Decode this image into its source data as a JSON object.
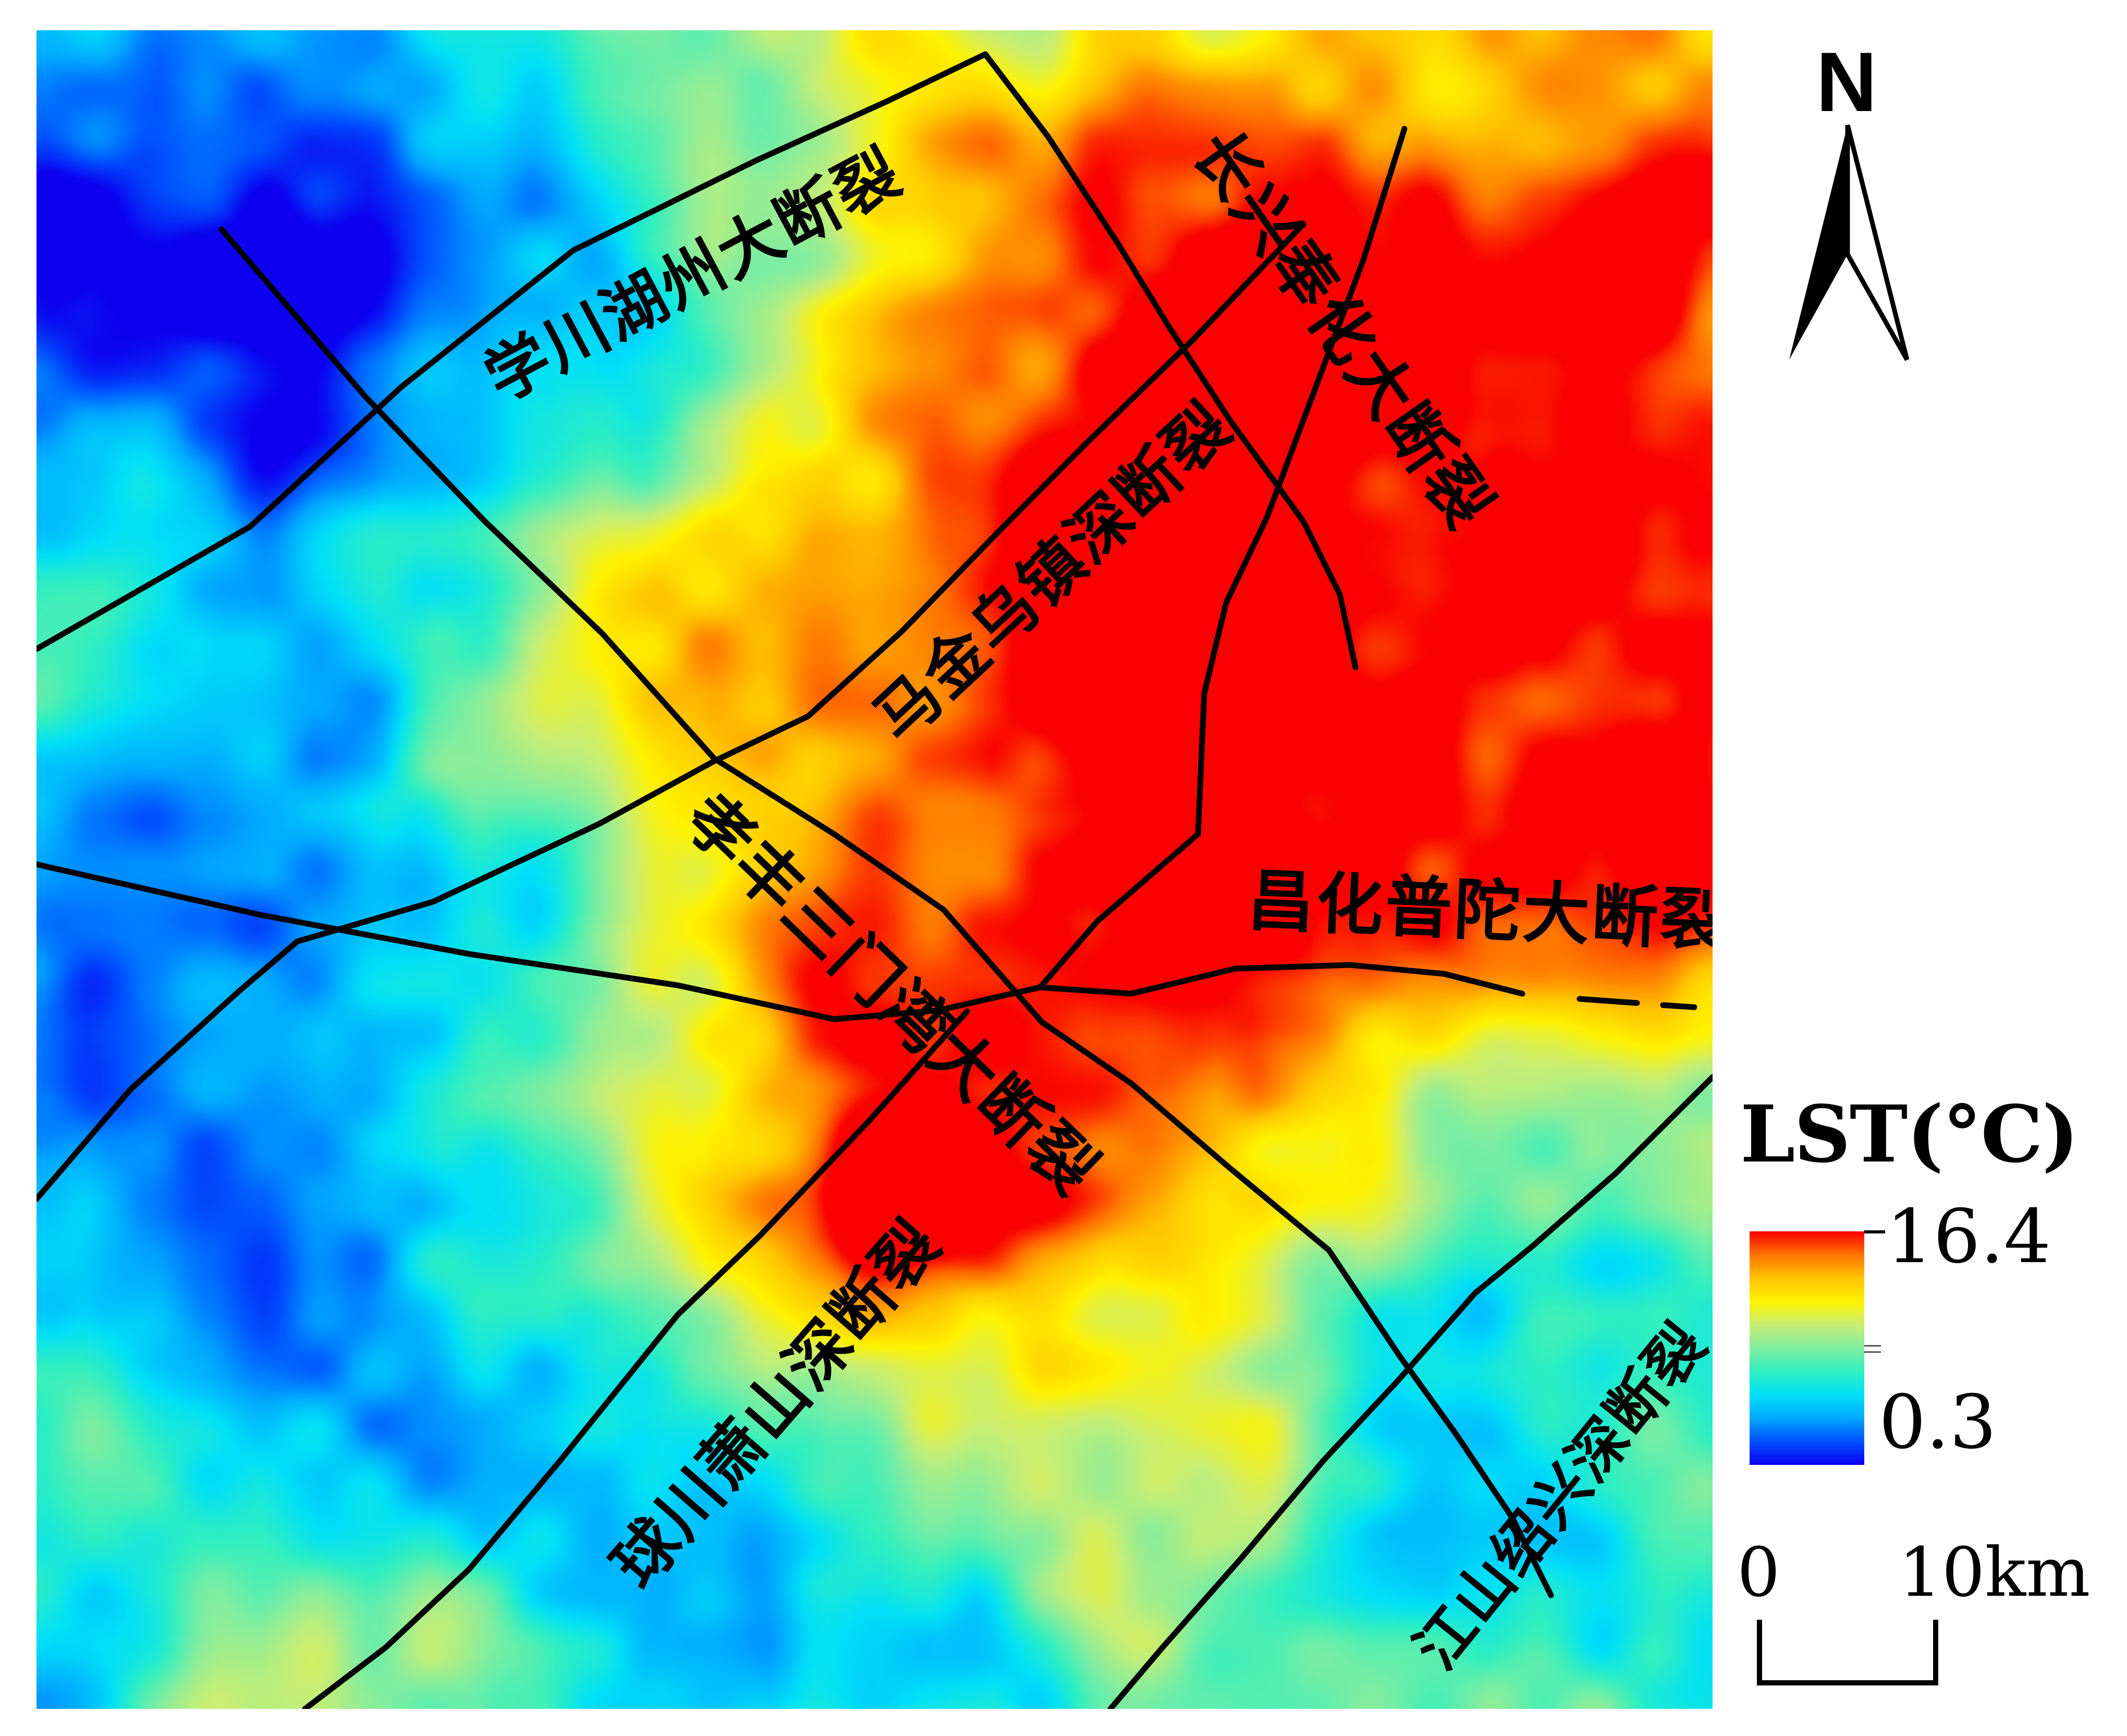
{
  "map": {
    "fault_labels": [
      {
        "id": "xuechuan-huzhou",
        "text": "学川湖州大断裂"
      },
      {
        "id": "changxing-fenghua",
        "text": "长兴奉化大断裂"
      },
      {
        "id": "majin-wuzhen",
        "text": "马金乌镇深断裂"
      },
      {
        "id": "xiaofeng-sanmenwan",
        "text": "孝丰三门湾大断裂"
      },
      {
        "id": "changhua-putuo",
        "text": "昌化普陀大断裂"
      },
      {
        "id": "qiuchuan-xiaoshan",
        "text": "球川萧山深断裂"
      },
      {
        "id": "jiangshan-shaoxing",
        "text": "江山绍兴深断裂"
      }
    ]
  },
  "north_arrow": {
    "label": "N"
  },
  "legend": {
    "title": "LST(°C)",
    "max_value": "16.4",
    "min_value": "0.3",
    "colormap": [
      "#0d00f0",
      "#0050ff",
      "#00a8ff",
      "#00e0f8",
      "#30efc0",
      "#80eda0",
      "#c9ee74",
      "#fff200",
      "#ffc400",
      "#ff7300",
      "#fa0000"
    ]
  },
  "scale_bar": {
    "start_label": "0",
    "end_label": "10km"
  },
  "chart_data": {
    "type": "heatmap",
    "title": "LST(°C)",
    "value_range": [
      0.3,
      16.4
    ],
    "units": "°C",
    "legend_position": "right",
    "colormap_order": "blue = 0.3 (min) to red = 16.4 (max)",
    "annotations": [
      "学川湖州大断裂",
      "长兴奉化大断裂",
      "马金乌镇深断裂",
      "孝丰三门湾大断裂",
      "昌化普陀大断裂",
      "球川萧山深断裂",
      "江山绍兴深断裂"
    ]
  }
}
